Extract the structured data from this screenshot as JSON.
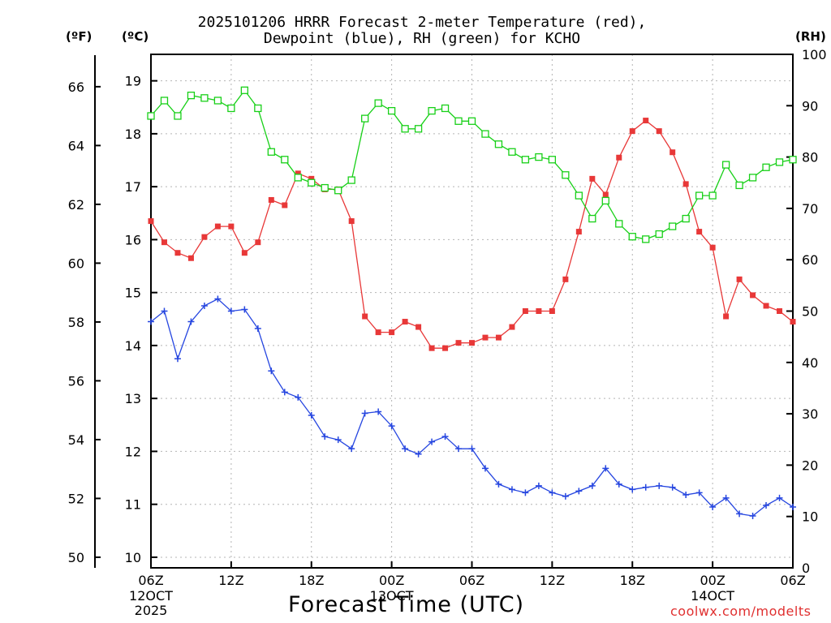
{
  "chart_data": {
    "type": "line",
    "title_line1": "2025101206 HRRR Forecast 2-meter Temperature (red),",
    "title_line2": "Dewpoint (blue), RH (green) for KCHO",
    "left_unit_f": "(ºF)",
    "left_unit_c": "(ºC)",
    "right_unit": "(RH)",
    "xlabel": "Forecast Time (UTC)",
    "credit": "coolwx.com/modelts",
    "x_range_hours": [
      0,
      48
    ],
    "ylim_c": [
      9.8,
      19.5
    ],
    "ylim_rh": [
      0,
      100
    ],
    "yticks_c": [
      10,
      11,
      12,
      13,
      14,
      15,
      16,
      17,
      18,
      19
    ],
    "yticks_f": [
      50,
      52,
      54,
      56,
      58,
      60,
      62,
      64,
      66
    ],
    "yticks_rh": [
      0,
      10,
      20,
      30,
      40,
      50,
      60,
      70,
      80,
      90,
      100
    ],
    "xticks": [
      {
        "hour": 0,
        "label": "06Z",
        "date": "12OCT",
        "year": "2025"
      },
      {
        "hour": 6,
        "label": "12Z",
        "date": "",
        "year": ""
      },
      {
        "hour": 12,
        "label": "18Z",
        "date": "",
        "year": ""
      },
      {
        "hour": 18,
        "label": "00Z",
        "date": "13OCT",
        "year": ""
      },
      {
        "hour": 24,
        "label": "06Z",
        "date": "",
        "year": ""
      },
      {
        "hour": 30,
        "label": "12Z",
        "date": "",
        "year": ""
      },
      {
        "hour": 36,
        "label": "18Z",
        "date": "",
        "year": ""
      },
      {
        "hour": 42,
        "label": "00Z",
        "date": "14OCT",
        "year": ""
      },
      {
        "hour": 48,
        "label": "06Z",
        "date": "",
        "year": ""
      }
    ],
    "series": [
      {
        "name": "Temperature",
        "unit": "C",
        "color": "#e83838",
        "marker": "filled-square",
        "values": [
          16.35,
          15.95,
          15.75,
          15.65,
          16.05,
          16.25,
          16.25,
          15.75,
          15.95,
          16.75,
          16.65,
          17.25,
          17.15,
          16.95,
          16.95,
          16.35,
          14.55,
          14.25,
          14.25,
          14.45,
          14.35,
          13.95,
          13.95,
          14.05,
          14.05,
          14.15,
          14.15,
          14.35,
          14.65,
          14.65,
          14.65,
          15.25,
          16.15,
          17.15,
          16.85,
          17.55,
          18.05,
          18.25,
          18.05,
          17.65,
          17.05,
          16.15,
          15.85,
          14.55,
          15.25,
          14.95,
          14.75,
          14.65,
          14.45
        ]
      },
      {
        "name": "Dewpoint",
        "unit": "C",
        "color": "#2646e0",
        "marker": "plus",
        "values": [
          14.45,
          14.65,
          13.75,
          14.45,
          14.75,
          14.88,
          14.65,
          14.68,
          14.32,
          13.52,
          13.12,
          13.02,
          12.68,
          12.28,
          12.22,
          12.05,
          12.72,
          12.75,
          12.48,
          12.05,
          11.95,
          12.18,
          12.28,
          12.05,
          12.05,
          11.68,
          11.38,
          11.28,
          11.22,
          11.35,
          11.22,
          11.15,
          11.25,
          11.35,
          11.68,
          11.38,
          11.28,
          11.32,
          11.35,
          11.32,
          11.18,
          11.22,
          10.95,
          11.12,
          10.82,
          10.78,
          10.98,
          11.12,
          10.95
        ]
      },
      {
        "name": "RH",
        "unit": "%",
        "color": "#18d018",
        "marker": "open-square",
        "values": [
          88,
          91,
          88,
          92,
          91.5,
          91,
          89.5,
          93,
          89.5,
          81,
          79.5,
          76,
          75,
          74,
          73.5,
          75.5,
          87.5,
          90.5,
          89,
          85.5,
          85.5,
          89,
          89.5,
          87,
          87,
          84.5,
          82.5,
          81,
          79.5,
          80,
          79.5,
          76.5,
          72.5,
          68,
          71.5,
          67,
          64.5,
          64,
          65,
          66.5,
          68,
          72.5,
          72.5,
          78.5,
          74.5,
          76,
          78,
          79,
          79.5
        ]
      }
    ]
  }
}
